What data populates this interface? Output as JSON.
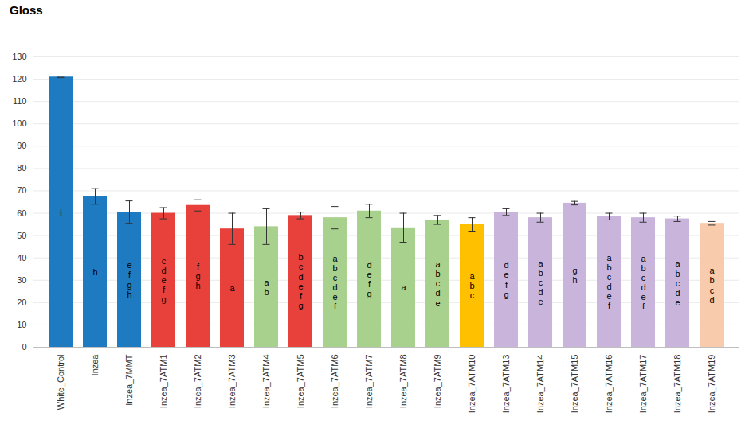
{
  "chart_data": {
    "type": "bar",
    "title": "Gloss",
    "categories": [
      "White_Control",
      "Inzea",
      "Inzea_7MMT",
      "Inzea_7ATM1",
      "Inzea_7ATM2",
      "Inzea_7ATM3",
      "Inzea_7ATM4",
      "Inzea_7ATM5",
      "Inzea_7ATM6",
      "Inzea_7ATM7",
      "Inzea_7ATM8",
      "Inzea_7ATM9",
      "Inzea_7ATM10",
      "Inzea_7ATM13",
      "Inzea_7ATM14",
      "Inzea_7ATM15",
      "Inzea_7ATM16",
      "Inzea_7ATM17",
      "Inzea_7ATM18",
      "Inzea_7ATM19"
    ],
    "values": [
      121,
      67.5,
      60.5,
      60,
      63.5,
      53,
      54,
      59,
      58,
      61,
      53.5,
      57,
      55,
      60.5,
      58,
      64.5,
      58.5,
      58,
      57.5,
      55.5
    ],
    "errors": [
      0.3,
      3.5,
      5,
      2.5,
      2.5,
      7,
      8,
      1.5,
      5,
      3,
      6.5,
      2,
      3,
      1.5,
      2,
      0.8,
      1.5,
      2,
      1.2,
      0.8
    ],
    "colors": [
      "#1f7bc1",
      "#1f7bc1",
      "#1f7bc1",
      "#e8413c",
      "#e8413c",
      "#e8413c",
      "#a9d18e",
      "#e8413c",
      "#a9d18e",
      "#a9d18e",
      "#a9d18e",
      "#a9d18e",
      "#ffc000",
      "#c9b4dc",
      "#c9b4dc",
      "#c9b4dc",
      "#c9b4dc",
      "#c9b4dc",
      "#c9b4dc",
      "#f8cbad"
    ],
    "significance_letters": [
      "i",
      "h",
      "e f g h",
      "c d e f g",
      "f g h",
      "a",
      "a b",
      "b c d e f g",
      "a b c d e f",
      "d e f g",
      "a",
      "a b c d e",
      "a b c",
      "d e f g",
      "a b c d e",
      "g h",
      "a b c d e f",
      "a b c d e f",
      "a b c d e",
      "a b c d"
    ],
    "ylim": [
      0,
      130
    ],
    "yticks": [
      0,
      10,
      20,
      30,
      40,
      50,
      60,
      70,
      80,
      90,
      100,
      110,
      120,
      130
    ],
    "grid": true
  }
}
